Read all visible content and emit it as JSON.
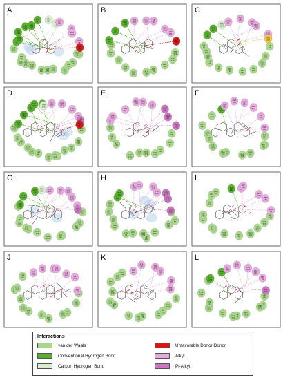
{
  "colors": {
    "van_der_waals": "#a9d88c",
    "conventional_hbond": "#59b02e",
    "carbon_hbond": "#d9ecd0",
    "unfavorable": "#d11a1a",
    "alkyl": "#e6a9dd",
    "pi_alkyl": "#c977c0",
    "pi_sulfur": "#f2c744",
    "halo": "#b9d2ea"
  },
  "panels": [
    {
      "label": "A",
      "vdw": 13,
      "hb": 6,
      "chb": 2,
      "alkyl": 4,
      "pi": 0,
      "unfav": 1,
      "halo": 3,
      "sulfur": 0
    },
    {
      "label": "B",
      "vdw": 10,
      "hb": 3,
      "chb": 0,
      "alkyl": 5,
      "pi": 0,
      "unfav": 1,
      "halo": 0,
      "sulfur": 0
    },
    {
      "label": "C",
      "vdw": 11,
      "hb": 2,
      "chb": 1,
      "alkyl": 5,
      "pi": 0,
      "unfav": 0,
      "halo": 0,
      "sulfur": 1
    },
    {
      "label": "D",
      "vdw": 13,
      "hb": 5,
      "chb": 1,
      "alkyl": 4,
      "pi": 1,
      "unfav": 1,
      "halo": 2,
      "sulfur": 0
    },
    {
      "label": "E",
      "vdw": 10,
      "hb": 0,
      "chb": 0,
      "alkyl": 6,
      "pi": 3,
      "unfav": 0,
      "halo": 0,
      "sulfur": 0
    },
    {
      "label": "F",
      "vdw": 12,
      "hb": 1,
      "chb": 0,
      "alkyl": 6,
      "pi": 0,
      "unfav": 0,
      "halo": 0,
      "sulfur": 0
    },
    {
      "label": "G",
      "vdw": 12,
      "hb": 3,
      "chb": 1,
      "alkyl": 5,
      "pi": 1,
      "unfav": 0,
      "halo": 2,
      "sulfur": 0
    },
    {
      "label": "H",
      "vdw": 12,
      "hb": 2,
      "chb": 0,
      "alkyl": 4,
      "pi": 3,
      "unfav": 0,
      "halo": 4,
      "sulfur": 0
    },
    {
      "label": "I",
      "vdw": 13,
      "hb": 1,
      "chb": 0,
      "alkyl": 5,
      "pi": 0,
      "unfav": 0,
      "halo": 0,
      "sulfur": 0
    },
    {
      "label": "J",
      "vdw": 12,
      "hb": 0,
      "chb": 0,
      "alkyl": 7,
      "pi": 0,
      "unfav": 0,
      "halo": 0,
      "sulfur": 0
    },
    {
      "label": "K",
      "vdw": 13,
      "hb": 0,
      "chb": 0,
      "alkyl": 6,
      "pi": 0,
      "unfav": 0,
      "halo": 0,
      "sulfur": 0
    },
    {
      "label": "L",
      "vdw": 11,
      "hb": 2,
      "chb": 0,
      "alkyl": 5,
      "pi": 1,
      "unfav": 0,
      "halo": 0,
      "sulfur": 0
    }
  ],
  "legend": {
    "title": "Interactions",
    "items": [
      {
        "label": "van der Waals",
        "color_key": "van_der_waals"
      },
      {
        "label": "Conventional Hydrogen Bond",
        "color_key": "conventional_hbond"
      },
      {
        "label": "Carbon Hydrogen Bond",
        "color_key": "carbon_hbond"
      },
      {
        "label": "Unfavorable Donor-Donor",
        "color_key": "unfavorable"
      },
      {
        "label": "Alkyl",
        "color_key": "alkyl"
      },
      {
        "label": "Pi-Alkyl",
        "color_key": "pi_alkyl"
      }
    ]
  }
}
